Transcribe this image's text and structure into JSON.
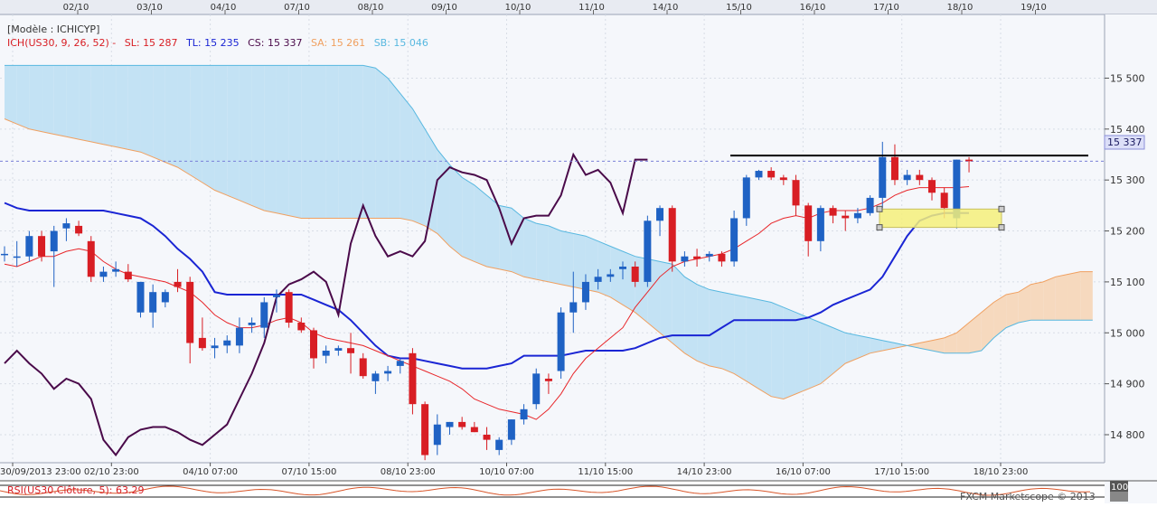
{
  "legend": {
    "model": "[Modèle : ICHICYP]",
    "ich_label": "ICH(US30, 9, 26, 52) -",
    "sl": "SL: 15 287",
    "tl": "TL: 15 235",
    "cs": "CS: 15 337",
    "sa": "SA: 15 261",
    "sb": "SB: 15 046"
  },
  "price_tag": "15 337",
  "rsi_label": "RSI(US30.Clôture, 5): 63.29",
  "rsi_scale": "100",
  "watermark": "FXCM Marketscope © 2013",
  "colors": {
    "bull": "#1f62c4",
    "bear": "#d81e24",
    "tenkan": "#e8262a",
    "kijun": "#1a25d4",
    "chikou": "#4a0a4a",
    "senkou_a": "#f0a060",
    "senkou_b": "#58b8e0",
    "kumo_bull": "#f6d9be",
    "kumo_bear": "#c3e2f4",
    "grid": "#d8dde6",
    "axis": "#4a4a4a",
    "bg": "#f5f7fb"
  },
  "chart_data": {
    "type": "candlestick",
    "ylim": [
      14745,
      15625
    ],
    "y_ticks": [
      "15 500",
      "15 400",
      "15 300",
      "15 200",
      "15 100",
      "15 000",
      "14 900",
      "14 800"
    ],
    "top_dates": [
      "02/10",
      "03/10",
      "04/10",
      "07/10",
      "08/10",
      "09/10",
      "10/10",
      "11/10",
      "14/10",
      "15/10",
      "16/10",
      "17/10",
      "18/10",
      "19/10"
    ],
    "bottom_dates": [
      "30/09/2013 23:00",
      "02/10 23:00",
      "04/10 07:00",
      "07/10 15:00",
      "08/10 23:00",
      "10/10 07:00",
      "11/10 15:00",
      "14/10 23:00",
      "16/10 07:00",
      "17/10 15:00",
      "18/10 23:00"
    ],
    "candles": [
      {
        "o": 15155,
        "h": 15170,
        "l": 15140,
        "c": 15155
      },
      {
        "o": 15150,
        "h": 15180,
        "l": 15130,
        "c": 15150
      },
      {
        "o": 15150,
        "h": 15200,
        "l": 15140,
        "c": 15190
      },
      {
        "o": 15190,
        "h": 15200,
        "l": 15140,
        "c": 15150
      },
      {
        "o": 15160,
        "h": 15210,
        "l": 15090,
        "c": 15200
      },
      {
        "o": 15205,
        "h": 15225,
        "l": 15180,
        "c": 15215
      },
      {
        "o": 15210,
        "h": 15220,
        "l": 15190,
        "c": 15195
      },
      {
        "o": 15180,
        "h": 15190,
        "l": 15100,
        "c": 15110
      },
      {
        "o": 15110,
        "h": 15130,
        "l": 15100,
        "c": 15120
      },
      {
        "o": 15120,
        "h": 15140,
        "l": 15110,
        "c": 15125
      },
      {
        "o": 15120,
        "h": 15135,
        "l": 15100,
        "c": 15105
      },
      {
        "o": 15040,
        "h": 15100,
        "l": 15030,
        "c": 15100
      },
      {
        "o": 15040,
        "h": 15095,
        "l": 15010,
        "c": 15080
      },
      {
        "o": 15060,
        "h": 15085,
        "l": 15050,
        "c": 15080
      },
      {
        "o": 15100,
        "h": 15125,
        "l": 15080,
        "c": 15090
      },
      {
        "o": 15100,
        "h": 15110,
        "l": 14940,
        "c": 14980
      },
      {
        "o": 14990,
        "h": 15030,
        "l": 14965,
        "c": 14970
      },
      {
        "o": 14970,
        "h": 14990,
        "l": 14950,
        "c": 14975
      },
      {
        "o": 14975,
        "h": 14995,
        "l": 14960,
        "c": 14985
      },
      {
        "o": 14975,
        "h": 15030,
        "l": 14960,
        "c": 15010
      },
      {
        "o": 15015,
        "h": 15030,
        "l": 15000,
        "c": 15020
      },
      {
        "o": 15010,
        "h": 15070,
        "l": 14990,
        "c": 15060
      },
      {
        "o": 15070,
        "h": 15085,
        "l": 15040,
        "c": 15075
      },
      {
        "o": 15080,
        "h": 15085,
        "l": 15010,
        "c": 15020
      },
      {
        "o": 15020,
        "h": 15030,
        "l": 15000,
        "c": 15005
      },
      {
        "o": 15005,
        "h": 15010,
        "l": 14930,
        "c": 14950
      },
      {
        "o": 14955,
        "h": 14975,
        "l": 14940,
        "c": 14965
      },
      {
        "o": 14965,
        "h": 14975,
        "l": 14955,
        "c": 14970
      },
      {
        "o": 14970,
        "h": 15000,
        "l": 14920,
        "c": 14960
      },
      {
        "o": 14950,
        "h": 14960,
        "l": 14910,
        "c": 14915
      },
      {
        "o": 14905,
        "h": 14925,
        "l": 14880,
        "c": 14920
      },
      {
        "o": 14920,
        "h": 14935,
        "l": 14905,
        "c": 14925
      },
      {
        "o": 14935,
        "h": 14950,
        "l": 14920,
        "c": 14945
      },
      {
        "o": 14960,
        "h": 14970,
        "l": 14840,
        "c": 14860
      },
      {
        "o": 14860,
        "h": 14865,
        "l": 14750,
        "c": 14760
      },
      {
        "o": 14780,
        "h": 14840,
        "l": 14760,
        "c": 14820
      },
      {
        "o": 14815,
        "h": 14825,
        "l": 14800,
        "c": 14825
      },
      {
        "o": 14825,
        "h": 14835,
        "l": 14810,
        "c": 14815
      },
      {
        "o": 14815,
        "h": 14825,
        "l": 14805,
        "c": 14805
      },
      {
        "o": 14800,
        "h": 14815,
        "l": 14770,
        "c": 14790
      },
      {
        "o": 14770,
        "h": 14795,
        "l": 14760,
        "c": 14790
      },
      {
        "o": 14790,
        "h": 14830,
        "l": 14780,
        "c": 14830
      },
      {
        "o": 14830,
        "h": 14860,
        "l": 14820,
        "c": 14850
      },
      {
        "o": 14860,
        "h": 14930,
        "l": 14850,
        "c": 14920
      },
      {
        "o": 14910,
        "h": 14920,
        "l": 14880,
        "c": 14905
      },
      {
        "o": 14925,
        "h": 15050,
        "l": 14910,
        "c": 15040
      },
      {
        "o": 15040,
        "h": 15120,
        "l": 15000,
        "c": 15060
      },
      {
        "o": 15060,
        "h": 15115,
        "l": 15045,
        "c": 15100
      },
      {
        "o": 15100,
        "h": 15125,
        "l": 15085,
        "c": 15110
      },
      {
        "o": 15110,
        "h": 15125,
        "l": 15100,
        "c": 15115
      },
      {
        "o": 15125,
        "h": 15140,
        "l": 15105,
        "c": 15130
      },
      {
        "o": 15130,
        "h": 15140,
        "l": 15090,
        "c": 15100
      },
      {
        "o": 15100,
        "h": 15230,
        "l": 15090,
        "c": 15220
      },
      {
        "o": 15220,
        "h": 15250,
        "l": 15190,
        "c": 15245
      },
      {
        "o": 15245,
        "h": 15250,
        "l": 15120,
        "c": 15140
      },
      {
        "o": 15140,
        "h": 15160,
        "l": 15130,
        "c": 15150
      },
      {
        "o": 15150,
        "h": 15165,
        "l": 15130,
        "c": 15145
      },
      {
        "o": 15150,
        "h": 15160,
        "l": 15140,
        "c": 15155
      },
      {
        "o": 15155,
        "h": 15160,
        "l": 15130,
        "c": 15140
      },
      {
        "o": 15140,
        "h": 15240,
        "l": 15130,
        "c": 15225
      },
      {
        "o": 15225,
        "h": 15310,
        "l": 15210,
        "c": 15305
      },
      {
        "o": 15305,
        "h": 15320,
        "l": 15300,
        "c": 15318
      },
      {
        "o": 15318,
        "h": 15325,
        "l": 15300,
        "c": 15305
      },
      {
        "o": 15305,
        "h": 15310,
        "l": 15290,
        "c": 15300
      },
      {
        "o": 15300,
        "h": 15310,
        "l": 15230,
        "c": 15250
      },
      {
        "o": 15250,
        "h": 15255,
        "l": 15150,
        "c": 15180
      },
      {
        "o": 15180,
        "h": 15250,
        "l": 15160,
        "c": 15245
      },
      {
        "o": 15245,
        "h": 15250,
        "l": 15215,
        "c": 15230
      },
      {
        "o": 15230,
        "h": 15240,
        "l": 15200,
        "c": 15225
      },
      {
        "o": 15225,
        "h": 15245,
        "l": 15215,
        "c": 15235
      },
      {
        "o": 15235,
        "h": 15270,
        "l": 15230,
        "c": 15265
      },
      {
        "o": 15265,
        "h": 15375,
        "l": 15245,
        "c": 15345
      },
      {
        "o": 15345,
        "h": 15370,
        "l": 15290,
        "c": 15300
      },
      {
        "o": 15300,
        "h": 15320,
        "l": 15290,
        "c": 15310
      },
      {
        "o": 15310,
        "h": 15320,
        "l": 15290,
        "c": 15300
      },
      {
        "o": 15300,
        "h": 15305,
        "l": 15260,
        "c": 15275
      },
      {
        "o": 15275,
        "h": 15285,
        "l": 15225,
        "c": 15245
      },
      {
        "o": 15225,
        "h": 15340,
        "l": 15205,
        "c": 15340
      },
      {
        "o": 15340,
        "h": 15345,
        "l": 15315,
        "c": 15337
      }
    ],
    "tenkan": [
      15135,
      15130,
      15140,
      15150,
      15150,
      15160,
      15165,
      15160,
      15140,
      15125,
      15115,
      15110,
      15105,
      15100,
      15090,
      15080,
      15060,
      15035,
      15020,
      15010,
      15010,
      15015,
      15025,
      15030,
      15020,
      15000,
      14990,
      14985,
      14980,
      14975,
      14965,
      14955,
      14945,
      14935,
      14925,
      14915,
      14905,
      14890,
      14870,
      14860,
      14850,
      14845,
      14840,
      14830,
      14850,
      14880,
      14920,
      14950,
      14970,
      14990,
      15010,
      15050,
      15080,
      15110,
      15130,
      15140,
      15145,
      15150,
      15155,
      15165,
      15180,
      15195,
      15215,
      15225,
      15230,
      15225,
      15235,
      15240,
      15240,
      15240,
      15245,
      15255,
      15270,
      15280,
      15285,
      15285,
      15285,
      15285,
      15287
    ],
    "kijun": [
      15255,
      15245,
      15240,
      15240,
      15240,
      15240,
      15240,
      15240,
      15240,
      15235,
      15230,
      15225,
      15210,
      15190,
      15165,
      15145,
      15120,
      15080,
      15075,
      15075,
      15075,
      15075,
      15075,
      15075,
      15075,
      15065,
      15055,
      15045,
      15025,
      15000,
      14975,
      14955,
      14950,
      14950,
      14945,
      14940,
      14935,
      14930,
      14930,
      14930,
      14935,
      14940,
      14955,
      14955,
      14955,
      14955,
      14960,
      14965,
      14965,
      14965,
      14965,
      14970,
      14980,
      14990,
      14995,
      14995,
      14995,
      14995,
      15010,
      15025,
      15025,
      15025,
      15025,
      15025,
      15025,
      15030,
      15040,
      15055,
      15065,
      15075,
      15085,
      15110,
      15150,
      15190,
      15220,
      15230,
      15235,
      15235,
      15235
    ],
    "senkou_a": [
      15420,
      15410,
      15400,
      15395,
      15390,
      15385,
      15380,
      15375,
      15370,
      15365,
      15360,
      15355,
      15345,
      15335,
      15325,
      15310,
      15295,
      15280,
      15270,
      15260,
      15250,
      15240,
      15235,
      15230,
      15225,
      15225,
      15225,
      15225,
      15225,
      15225,
      15225,
      15225,
      15225,
      15220,
      15210,
      15195,
      15170,
      15150,
      15140,
      15130,
      15125,
      15120,
      15110,
      15105,
      15100,
      15095,
      15090,
      15085,
      15080,
      15070,
      15055,
      15040,
      15020,
      15000,
      14980,
      14960,
      14945,
      14935,
      14930,
      14920,
      14905,
      14890,
      14875,
      14870,
      14880,
      14890,
      14900,
      14920,
      14940,
      14950,
      14960,
      14965,
      14970,
      14975,
      14980,
      14985,
      14990,
      15000,
      15020,
      15040,
      15060,
      15075,
      15080,
      15095,
      15100,
      15110,
      15115,
      15120,
      15120
    ],
    "senkou_b": [
      15525,
      15525,
      15525,
      15525,
      15525,
      15525,
      15525,
      15525,
      15525,
      15525,
      15525,
      15525,
      15525,
      15525,
      15525,
      15525,
      15525,
      15525,
      15525,
      15525,
      15525,
      15525,
      15525,
      15525,
      15525,
      15525,
      15525,
      15525,
      15525,
      15525,
      15520,
      15500,
      15470,
      15440,
      15400,
      15360,
      15330,
      15305,
      15290,
      15270,
      15250,
      15245,
      15225,
      15215,
      15210,
      15200,
      15195,
      15190,
      15180,
      15170,
      15160,
      15150,
      15145,
      15140,
      15135,
      15110,
      15095,
      15085,
      15080,
      15075,
      15070,
      15065,
      15060,
      15050,
      15040,
      15030,
      15020,
      15010,
      15000,
      14995,
      14990,
      14985,
      14980,
      14975,
      14970,
      14965,
      14960,
      14960,
      14960,
      14965,
      14990,
      15010,
      15020,
      15025,
      15025,
      15025,
      15025,
      15025,
      15025
    ],
    "chikou": [
      14940,
      14965,
      14940,
      14920,
      14890,
      14910,
      14900,
      14870,
      14790,
      14760,
      14795,
      14810,
      14815,
      14815,
      14805,
      14790,
      14780,
      14800,
      14820,
      14870,
      14920,
      14980,
      15070,
      15095,
      15105,
      15120,
      15100,
      15035,
      15175,
      15250,
      15190,
      15150,
      15160,
      15150,
      15180,
      15300,
      15325,
      15315,
      15310,
      15300,
      15245,
      15175,
      15225,
      15230,
      15230,
      15270,
      15350,
      15310,
      15320,
      15295,
      15235,
      15340,
      15340
    ],
    "resistance_level": 15348,
    "support_zone": [
      15207,
      15243
    ]
  }
}
